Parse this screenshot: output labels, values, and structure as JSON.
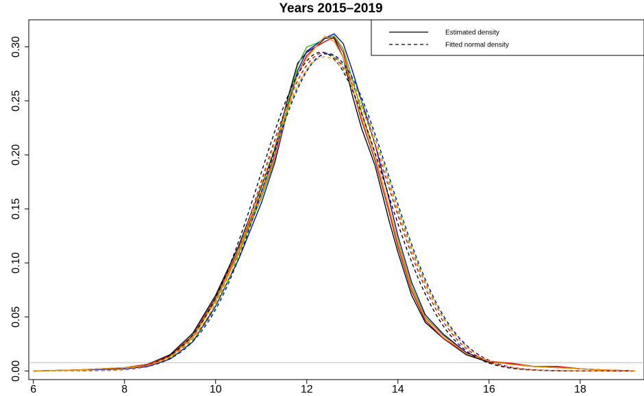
{
  "chart_data": {
    "type": "line",
    "title": "Years 2015–2019",
    "xlabel": "",
    "ylabel": "",
    "xlim": [
      5.9,
      19.4
    ],
    "ylim": [
      -0.008,
      0.325
    ],
    "x_ticks": [
      6,
      8,
      10,
      12,
      14,
      16,
      18
    ],
    "x_tick_labels": [
      "6",
      "8",
      "10",
      "12",
      "14",
      "16",
      "18"
    ],
    "y_ticks": [
      0.0,
      0.05,
      0.1,
      0.15,
      0.2,
      0.25,
      0.3
    ],
    "y_tick_labels": [
      "0.00",
      "0.05",
      "0.10",
      "0.15",
      "0.20",
      "0.25",
      "0.30"
    ],
    "grid": false,
    "zero_line": true,
    "legend": {
      "position": "top-right",
      "entries": [
        {
          "label": "Estimated density",
          "style": "solid"
        },
        {
          "label": "Fitted normal density",
          "style": "dashed"
        }
      ]
    },
    "series": [
      {
        "color": "#000000",
        "style": "solid",
        "points": [
          [
            6,
            0
          ],
          [
            7,
            0.001
          ],
          [
            8,
            0.003
          ],
          [
            8.5,
            0.006
          ],
          [
            9,
            0.015
          ],
          [
            9.5,
            0.035
          ],
          [
            10,
            0.07
          ],
          [
            10.5,
            0.115
          ],
          [
            11,
            0.17
          ],
          [
            11.3,
            0.205
          ],
          [
            11.6,
            0.255
          ],
          [
            11.8,
            0.285
          ],
          [
            12,
            0.295
          ],
          [
            12.2,
            0.3
          ],
          [
            12.4,
            0.308
          ],
          [
            12.6,
            0.308
          ],
          [
            12.8,
            0.29
          ],
          [
            13,
            0.255
          ],
          [
            13.2,
            0.225
          ],
          [
            13.5,
            0.19
          ],
          [
            13.8,
            0.14
          ],
          [
            14,
            0.11
          ],
          [
            14.3,
            0.07
          ],
          [
            14.6,
            0.045
          ],
          [
            15,
            0.03
          ],
          [
            15.5,
            0.015
          ],
          [
            16,
            0.008
          ],
          [
            16.5,
            0.007
          ],
          [
            17,
            0.004
          ],
          [
            17.5,
            0.004
          ],
          [
            18,
            0.002
          ],
          [
            18.5,
            0.001
          ],
          [
            19.2,
            0
          ]
        ]
      },
      {
        "color": "#dd0000",
        "style": "solid",
        "points": [
          [
            6,
            0
          ],
          [
            7,
            0.001
          ],
          [
            8,
            0.003
          ],
          [
            8.5,
            0.006
          ],
          [
            9,
            0.014
          ],
          [
            9.5,
            0.033
          ],
          [
            10,
            0.068
          ],
          [
            10.5,
            0.112
          ],
          [
            11,
            0.165
          ],
          [
            11.3,
            0.2
          ],
          [
            11.6,
            0.248
          ],
          [
            11.8,
            0.275
          ],
          [
            12,
            0.292
          ],
          [
            12.2,
            0.3
          ],
          [
            12.4,
            0.305
          ],
          [
            12.6,
            0.309
          ],
          [
            12.8,
            0.295
          ],
          [
            13,
            0.262
          ],
          [
            13.2,
            0.232
          ],
          [
            13.5,
            0.195
          ],
          [
            13.8,
            0.148
          ],
          [
            14,
            0.115
          ],
          [
            14.3,
            0.074
          ],
          [
            14.6,
            0.047
          ],
          [
            15,
            0.03
          ],
          [
            15.5,
            0.016
          ],
          [
            16,
            0.009
          ],
          [
            16.5,
            0.007
          ],
          [
            17,
            0.004
          ],
          [
            17.5,
            0.004
          ],
          [
            18,
            0.002
          ],
          [
            18.5,
            0.001
          ],
          [
            19.2,
            0
          ]
        ]
      },
      {
        "color": "#22bb00",
        "style": "solid",
        "points": [
          [
            6,
            0
          ],
          [
            7,
            0.001
          ],
          [
            8,
            0.003
          ],
          [
            8.5,
            0.005
          ],
          [
            9,
            0.013
          ],
          [
            9.5,
            0.031
          ],
          [
            10,
            0.065
          ],
          [
            10.5,
            0.108
          ],
          [
            11,
            0.16
          ],
          [
            11.3,
            0.196
          ],
          [
            11.6,
            0.25
          ],
          [
            11.8,
            0.283
          ],
          [
            12,
            0.3
          ],
          [
            12.2,
            0.303
          ],
          [
            12.4,
            0.308
          ],
          [
            12.6,
            0.31
          ],
          [
            12.8,
            0.298
          ],
          [
            13,
            0.27
          ],
          [
            13.2,
            0.24
          ],
          [
            13.5,
            0.2
          ],
          [
            13.8,
            0.152
          ],
          [
            14,
            0.12
          ],
          [
            14.3,
            0.078
          ],
          [
            14.6,
            0.05
          ],
          [
            15,
            0.033
          ],
          [
            15.5,
            0.017
          ],
          [
            16,
            0.009
          ],
          [
            16.5,
            0.006
          ],
          [
            17,
            0.004
          ],
          [
            17.5,
            0.003
          ],
          [
            18,
            0.002
          ],
          [
            18.5,
            0.001
          ],
          [
            19.2,
            0
          ]
        ]
      },
      {
        "color": "#0000dd",
        "style": "solid",
        "points": [
          [
            6,
            0
          ],
          [
            7,
            0.001
          ],
          [
            8,
            0.002
          ],
          [
            8.5,
            0.004
          ],
          [
            9,
            0.011
          ],
          [
            9.5,
            0.027
          ],
          [
            10,
            0.06
          ],
          [
            10.5,
            0.103
          ],
          [
            11,
            0.155
          ],
          [
            11.3,
            0.193
          ],
          [
            11.6,
            0.245
          ],
          [
            11.8,
            0.278
          ],
          [
            12,
            0.296
          ],
          [
            12.2,
            0.302
          ],
          [
            12.4,
            0.308
          ],
          [
            12.6,
            0.312
          ],
          [
            12.8,
            0.303
          ],
          [
            13,
            0.278
          ],
          [
            13.2,
            0.25
          ],
          [
            13.5,
            0.21
          ],
          [
            13.8,
            0.16
          ],
          [
            14,
            0.125
          ],
          [
            14.3,
            0.082
          ],
          [
            14.6,
            0.052
          ],
          [
            15,
            0.034
          ],
          [
            15.5,
            0.017
          ],
          [
            16,
            0.009
          ],
          [
            16.5,
            0.006
          ],
          [
            17,
            0.004
          ],
          [
            17.5,
            0.003
          ],
          [
            18,
            0.002
          ],
          [
            18.5,
            0.001
          ],
          [
            19.2,
            0
          ]
        ]
      },
      {
        "color": "#ff9900",
        "style": "solid",
        "points": [
          [
            6,
            0
          ],
          [
            7,
            0.001
          ],
          [
            8,
            0.003
          ],
          [
            8.5,
            0.005
          ],
          [
            9,
            0.013
          ],
          [
            9.5,
            0.032
          ],
          [
            10,
            0.066
          ],
          [
            10.5,
            0.11
          ],
          [
            11,
            0.163
          ],
          [
            11.3,
            0.198
          ],
          [
            11.6,
            0.245
          ],
          [
            11.8,
            0.275
          ],
          [
            12,
            0.29
          ],
          [
            12.2,
            0.3
          ],
          [
            12.4,
            0.31
          ],
          [
            12.6,
            0.305
          ],
          [
            12.8,
            0.29
          ],
          [
            13,
            0.262
          ],
          [
            13.2,
            0.235
          ],
          [
            13.5,
            0.2
          ],
          [
            13.8,
            0.152
          ],
          [
            14,
            0.118
          ],
          [
            14.3,
            0.076
          ],
          [
            14.6,
            0.049
          ],
          [
            15,
            0.032
          ],
          [
            15.5,
            0.016
          ],
          [
            16,
            0.009
          ],
          [
            16.5,
            0.006
          ],
          [
            17,
            0.004
          ],
          [
            17.5,
            0.003
          ],
          [
            18,
            0.002
          ],
          [
            18.5,
            0.001
          ],
          [
            19.2,
            0
          ]
        ]
      },
      {
        "color": "#000000",
        "style": "dashed",
        "mean": 12.32,
        "sd": 1.352
      },
      {
        "color": "#dd0000",
        "style": "dashed",
        "mean": 12.38,
        "sd": 1.355
      },
      {
        "color": "#22bb00",
        "style": "dashed",
        "mean": 12.43,
        "sd": 1.36
      },
      {
        "color": "#0000dd",
        "style": "dashed",
        "mean": 12.46,
        "sd": 1.358
      },
      {
        "color": "#ff9900",
        "style": "dashed",
        "mean": 12.4,
        "sd": 1.372
      }
    ]
  }
}
